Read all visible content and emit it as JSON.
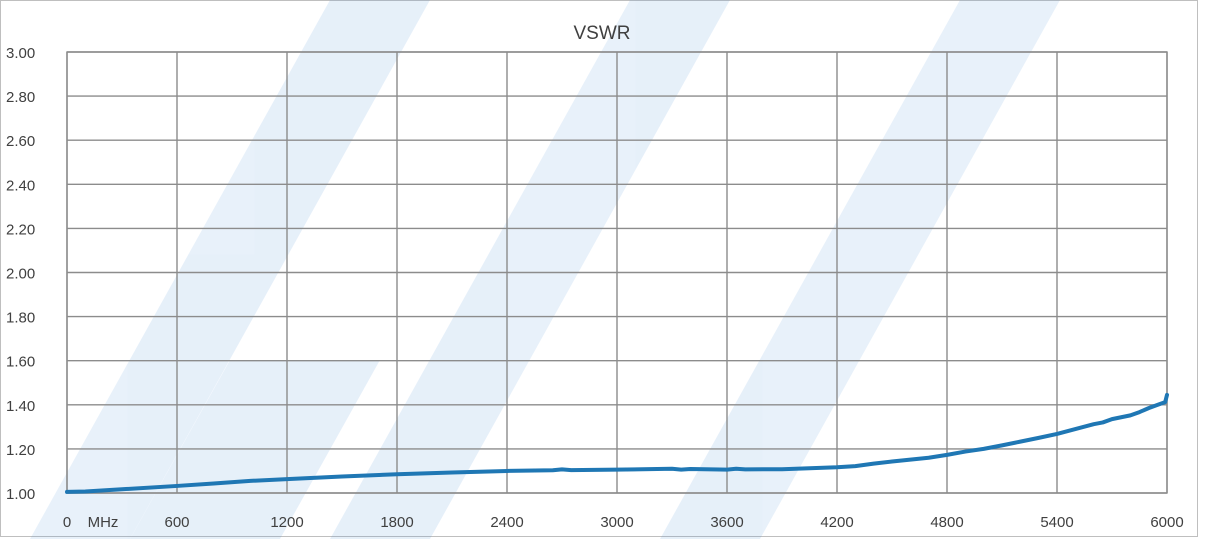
{
  "chart_data": {
    "type": "line",
    "title": "VSWR",
    "x_unit_label": "MHz",
    "xlim": [
      0,
      6000
    ],
    "ylim": [
      1.0,
      3.0
    ],
    "x_ticks": [
      "0",
      "600",
      "1200",
      "1800",
      "2400",
      "3000",
      "3600",
      "4200",
      "4800",
      "5400",
      "6000"
    ],
    "y_ticks": [
      "1.00",
      "1.20",
      "1.40",
      "1.60",
      "1.80",
      "2.00",
      "2.20",
      "2.40",
      "2.60",
      "2.80",
      "3.00"
    ],
    "grid": true,
    "line_color": "#1f77b4",
    "series": [
      {
        "x": [
          0,
          100,
          300,
          600,
          800,
          1000,
          1200,
          1500,
          1800,
          2100,
          2400,
          2650,
          2700,
          2750,
          3000,
          3300,
          3350,
          3400,
          3600,
          3650,
          3700,
          3900,
          4200,
          4300,
          4400,
          4500,
          4700,
          4800,
          4900,
          5000,
          5100,
          5200,
          5300,
          5400,
          5500,
          5600,
          5650,
          5700,
          5800,
          5850,
          5900,
          5950,
          5990,
          6000
        ],
        "y": [
          1.005,
          1.007,
          1.017,
          1.032,
          1.043,
          1.055,
          1.063,
          1.075,
          1.085,
          1.093,
          1.1,
          1.103,
          1.107,
          1.104,
          1.106,
          1.11,
          1.106,
          1.109,
          1.106,
          1.11,
          1.107,
          1.108,
          1.117,
          1.122,
          1.133,
          1.143,
          1.16,
          1.173,
          1.188,
          1.2,
          1.216,
          1.233,
          1.25,
          1.268,
          1.29,
          1.312,
          1.32,
          1.335,
          1.352,
          1.367,
          1.385,
          1.4,
          1.412,
          1.445
        ]
      }
    ]
  }
}
